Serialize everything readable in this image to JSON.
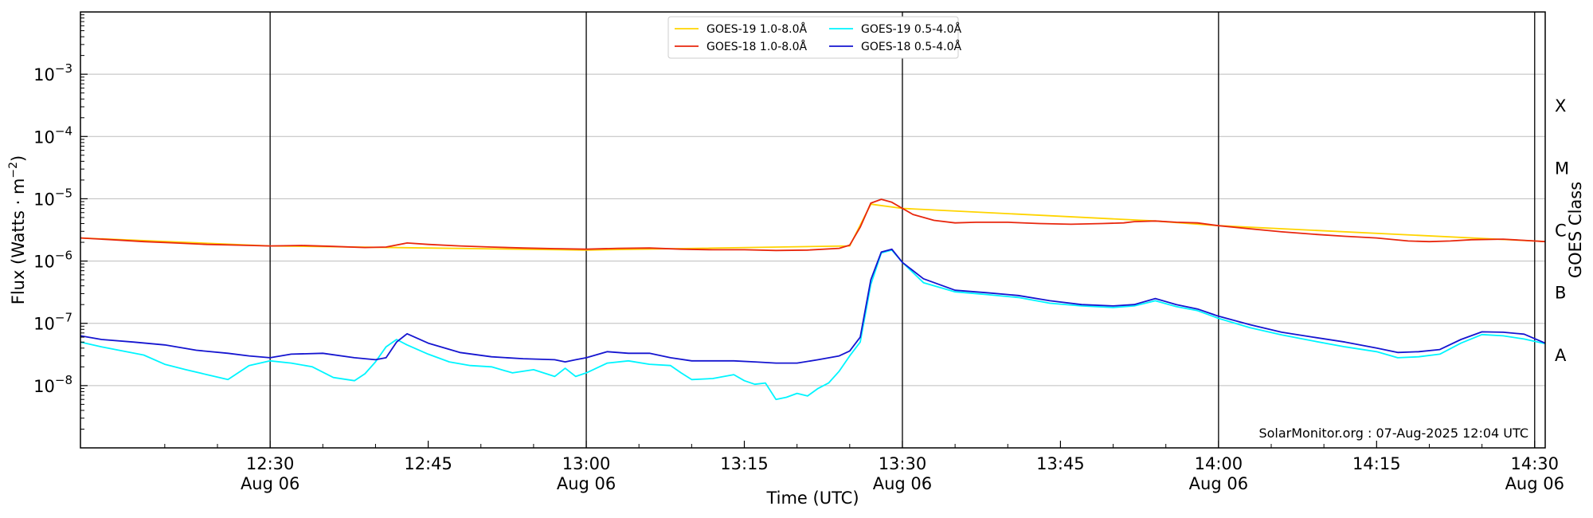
{
  "chart_data": {
    "type": "line",
    "ylabel": "Flux (Watts · m",
    "ylabel_sup": "−2",
    "ylabel_close": ")",
    "xlabel": "Time (UTC)",
    "right_label": "GOES Class",
    "y_scale": "log",
    "ylim": [
      1e-09,
      0.01
    ],
    "y_ticks": [
      {
        "value": 1e-08,
        "base": "10",
        "exp": "−8"
      },
      {
        "value": 1e-07,
        "base": "10",
        "exp": "−7"
      },
      {
        "value": 1e-06,
        "base": "10",
        "exp": "−6"
      },
      {
        "value": 1e-05,
        "base": "10",
        "exp": "−5"
      },
      {
        "value": 0.0001,
        "base": "10",
        "exp": "−4"
      },
      {
        "value": 0.001,
        "base": "10",
        "exp": "−3"
      }
    ],
    "xlim": [
      "2025-08-06 12:12",
      "2025-08-06 14:31"
    ],
    "x_ticks": [
      {
        "time": "12:30",
        "line1": "12:30",
        "line2": "Aug 06",
        "vline": true
      },
      {
        "time": "12:45",
        "line1": "12:45",
        "line2": "",
        "vline": false
      },
      {
        "time": "13:00",
        "line1": "13:00",
        "line2": "Aug 06",
        "vline": true
      },
      {
        "time": "13:15",
        "line1": "13:15",
        "line2": "",
        "vline": false
      },
      {
        "time": "13:30",
        "line1": "13:30",
        "line2": "Aug 06",
        "vline": true
      },
      {
        "time": "13:45",
        "line1": "13:45",
        "line2": "",
        "vline": false
      },
      {
        "time": "14:00",
        "line1": "14:00",
        "line2": "Aug 06",
        "vline": true
      },
      {
        "time": "14:15",
        "line1": "14:15",
        "line2": "",
        "vline": false
      },
      {
        "time": "14:30",
        "line1": "14:30",
        "line2": "Aug 06",
        "vline": true
      }
    ],
    "goes_classes": [
      {
        "label": "A",
        "value": 3.16e-08
      },
      {
        "label": "B",
        "value": 3.16e-07
      },
      {
        "label": "C",
        "value": 3.16e-06
      },
      {
        "label": "M",
        "value": 3.16e-05
      },
      {
        "label": "X",
        "value": 0.000316
      }
    ],
    "grid": true,
    "legend_position": "top-center",
    "legend": [
      {
        "name": "GOES-19 1.0-8.0Å",
        "color": "#ffd400"
      },
      {
        "name": "GOES-18 1.0-8.0Å",
        "color": "#e8270e"
      },
      {
        "name": "GOES-19 0.5-4.0Å",
        "color": "#00f5ff"
      },
      {
        "name": "GOES-18 0.5-4.0Å",
        "color": "#1515d0"
      }
    ],
    "credit": "SolarMonitor.org : 07-Aug-2025 12:04 UTC",
    "series": [
      {
        "name": "GOES-19 1.0-8.0Å",
        "color": "#ffd400",
        "x": [
          "12:12",
          "12:30",
          "13:00",
          "13:25",
          "13:27",
          "13:30",
          "13:54",
          "14:00",
          "14:30",
          "14:31"
        ],
        "values": [
          2.35e-06,
          1.75e-06,
          1.5e-06,
          1.75e-06,
          8.2e-06,
          7e-06,
          4.4e-06,
          3.7e-06,
          2.1e-06,
          2.05e-06
        ]
      },
      {
        "name": "GOES-18 1.0-8.0Å",
        "color": "#e8270e",
        "x": [
          "12:12",
          "12:15",
          "12:18",
          "12:21",
          "12:24",
          "12:27",
          "12:30",
          "12:33",
          "12:36",
          "12:39",
          "12:41",
          "12:43",
          "12:45",
          "12:48",
          "12:51",
          "12:54",
          "12:57",
          "13:00",
          "13:03",
          "13:06",
          "13:09",
          "13:12",
          "13:15",
          "13:18",
          "13:21",
          "13:24",
          "13:25",
          "13:26",
          "13:27",
          "13:28",
          "13:29",
          "13:30",
          "13:31",
          "13:33",
          "13:35",
          "13:37",
          "13:40",
          "13:43",
          "13:46",
          "13:49",
          "13:51",
          "13:52",
          "13:54",
          "13:56",
          "13:58",
          "14:00",
          "14:03",
          "14:06",
          "14:09",
          "14:12",
          "14:15",
          "14:18",
          "14:20",
          "14:22",
          "14:24",
          "14:27",
          "14:30",
          "14:31"
        ],
        "values": [
          2.35e-06,
          2.2e-06,
          2.05e-06,
          1.95e-06,
          1.85e-06,
          1.8e-06,
          1.75e-06,
          1.78e-06,
          1.72e-06,
          1.65e-06,
          1.68e-06,
          1.95e-06,
          1.85e-06,
          1.75e-06,
          1.68e-06,
          1.62e-06,
          1.58e-06,
          1.55e-06,
          1.6e-06,
          1.62e-06,
          1.55e-06,
          1.52e-06,
          1.52e-06,
          1.48e-06,
          1.5e-06,
          1.6e-06,
          1.8e-06,
          3.5e-06,
          8.5e-06,
          9.8e-06,
          8.8e-06,
          7e-06,
          5.6e-06,
          4.5e-06,
          4.1e-06,
          4.2e-06,
          4.2e-06,
          4e-06,
          3.9e-06,
          4e-06,
          4.1e-06,
          4.3e-06,
          4.4e-06,
          4.2e-06,
          4.1e-06,
          3.7e-06,
          3.3e-06,
          2.95e-06,
          2.7e-06,
          2.5e-06,
          2.35e-06,
          2.1e-06,
          2.05e-06,
          2.1e-06,
          2.2e-06,
          2.25e-06,
          2.1e-06,
          2.05e-06
        ]
      },
      {
        "name": "GOES-19 0.5-4.0Å",
        "color": "#00f5ff",
        "x": [
          "12:12",
          "12:14",
          "12:16",
          "12:18",
          "12:20",
          "12:22",
          "12:24",
          "12:26",
          "12:28",
          "12:30",
          "12:32",
          "12:34",
          "12:36",
          "12:38",
          "12:39",
          "12:40",
          "12:41",
          "12:42",
          "12:43",
          "12:45",
          "12:47",
          "12:49",
          "12:51",
          "12:53",
          "12:55",
          "12:57",
          "12:58",
          "12:59",
          "13:00",
          "13:02",
          "13:04",
          "13:06",
          "13:08",
          "13:09",
          "13:10",
          "13:12",
          "13:14",
          "13:15",
          "13:16",
          "13:17",
          "13:18",
          "13:19",
          "13:20",
          "13:21",
          "13:22",
          "13:23",
          "13:24",
          "13:25",
          "13:26",
          "13:27",
          "13:28",
          "13:29",
          "13:30",
          "13:32",
          "13:35",
          "13:38",
          "13:41",
          "13:44",
          "13:47",
          "13:50",
          "13:52",
          "13:54",
          "13:56",
          "13:58",
          "14:00",
          "14:03",
          "14:06",
          "14:09",
          "14:12",
          "14:15",
          "14:17",
          "14:19",
          "14:21",
          "14:23",
          "14:25",
          "14:27",
          "14:29",
          "14:31"
        ],
        "values": [
          5e-08,
          4.2e-08,
          3.6e-08,
          3.1e-08,
          2.2e-08,
          1.8e-08,
          1.5e-08,
          1.25e-08,
          2.1e-08,
          2.5e-08,
          2.3e-08,
          2e-08,
          1.35e-08,
          1.2e-08,
          1.55e-08,
          2.4e-08,
          4.2e-08,
          5.5e-08,
          4.5e-08,
          3.2e-08,
          2.4e-08,
          2.1e-08,
          2e-08,
          1.6e-08,
          1.8e-08,
          1.4e-08,
          1.9e-08,
          1.4e-08,
          1.6e-08,
          2.3e-08,
          2.5e-08,
          2.2e-08,
          2.1e-08,
          1.6e-08,
          1.25e-08,
          1.3e-08,
          1.5e-08,
          1.2e-08,
          1.05e-08,
          1.1e-08,
          6e-09,
          6.5e-09,
          7.5e-09,
          6.8e-09,
          9e-09,
          1.1e-08,
          1.7e-08,
          3e-08,
          5e-08,
          4.2e-07,
          1.35e-06,
          1.5e-06,
          9.5e-07,
          4.5e-07,
          3.2e-07,
          2.9e-07,
          2.6e-07,
          2.1e-07,
          1.9e-07,
          1.8e-07,
          1.9e-07,
          2.3e-07,
          1.85e-07,
          1.6e-07,
          1.2e-07,
          8.5e-08,
          6.5e-08,
          5.2e-08,
          4.2e-08,
          3.5e-08,
          2.8e-08,
          2.9e-08,
          3.2e-08,
          4.8e-08,
          6.6e-08,
          6.3e-08,
          5.6e-08,
          4.7e-08
        ]
      },
      {
        "name": "GOES-18 0.5-4.0Å",
        "color": "#1515d0",
        "x": [
          "12:12",
          "12:14",
          "12:17",
          "12:20",
          "12:23",
          "12:26",
          "12:28",
          "12:30",
          "12:32",
          "12:35",
          "12:38",
          "12:40",
          "12:41",
          "12:42",
          "12:43",
          "12:45",
          "12:48",
          "12:51",
          "12:54",
          "12:57",
          "12:58",
          "12:59",
          "13:00",
          "13:02",
          "13:04",
          "13:06",
          "13:08",
          "13:10",
          "13:12",
          "13:14",
          "13:16",
          "13:18",
          "13:20",
          "13:22",
          "13:24",
          "13:25",
          "13:26",
          "13:27",
          "13:28",
          "13:29",
          "13:30",
          "13:32",
          "13:35",
          "13:38",
          "13:41",
          "13:44",
          "13:47",
          "13:50",
          "13:52",
          "13:54",
          "13:56",
          "13:58",
          "14:00",
          "14:03",
          "14:06",
          "14:09",
          "14:12",
          "14:15",
          "14:17",
          "14:19",
          "14:21",
          "14:23",
          "14:25",
          "14:27",
          "14:29",
          "14:31"
        ],
        "values": [
          6.3e-08,
          5.5e-08,
          5e-08,
          4.5e-08,
          3.7e-08,
          3.3e-08,
          3e-08,
          2.8e-08,
          3.2e-08,
          3.3e-08,
          2.8e-08,
          2.6e-08,
          2.8e-08,
          5e-08,
          6.8e-08,
          4.8e-08,
          3.4e-08,
          2.9e-08,
          2.7e-08,
          2.6e-08,
          2.4e-08,
          2.6e-08,
          2.8e-08,
          3.5e-08,
          3.3e-08,
          3.3e-08,
          2.8e-08,
          2.5e-08,
          2.5e-08,
          2.5e-08,
          2.4e-08,
          2.3e-08,
          2.3e-08,
          2.6e-08,
          3e-08,
          3.6e-08,
          6e-08,
          5e-07,
          1.4e-06,
          1.55e-06,
          9.5e-07,
          5.2e-07,
          3.4e-07,
          3.1e-07,
          2.8e-07,
          2.3e-07,
          2e-07,
          1.9e-07,
          2e-07,
          2.5e-07,
          2e-07,
          1.7e-07,
          1.3e-07,
          9.5e-08,
          7.2e-08,
          6e-08,
          5e-08,
          4e-08,
          3.4e-08,
          3.5e-08,
          3.8e-08,
          5.5e-08,
          7.3e-08,
          7.2e-08,
          6.7e-08,
          4.8e-08
        ]
      }
    ]
  }
}
